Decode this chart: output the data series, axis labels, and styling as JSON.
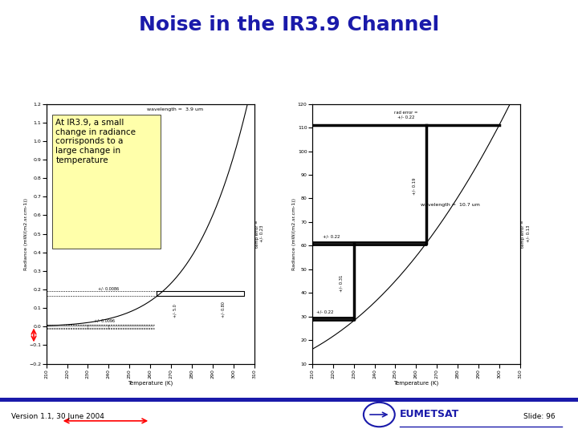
{
  "title": "Noise in the IR3.9 Channel",
  "title_color": "#1a1aaa",
  "title_fontsize": 18,
  "bg_color": "#ffffff",
  "left_plot": {
    "wavelength_label": "wavelength =  3.9 um",
    "ylabel": "Radiance (mW/(m2.sr.cm-1))",
    "xlabel": "Temperature (K)",
    "xlim": [
      210,
      310
    ],
    "ylim": [
      -0.2,
      1.2
    ],
    "xticks": [
      210,
      220,
      230,
      240,
      250,
      260,
      270,
      280,
      290,
      300,
      310
    ],
    "yticks": [
      -0.2,
      -0.1,
      0.0,
      0.1,
      0.2,
      0.3,
      0.4,
      0.5,
      0.6,
      0.7,
      0.8,
      0.9,
      1.0,
      1.1,
      1.2
    ],
    "annotation_box_text": "At IR3.9, a small\nchange in radiance\ncorrisponds to a\nlarge change in\ntemperature",
    "annotation_box_color": "#ffffaa",
    "noise_label1": "+/- 0.0086",
    "noise_label2": "+/- 0.0096",
    "right_axis_label": "temp error =\n+/- 0.23"
  },
  "right_plot": {
    "wavelength_label": "wavelength =  10.7 um",
    "ylabel": "Radiance (mW/(m2.sr.cm-1))",
    "xlabel": "Temperature (K)",
    "xlim": [
      210,
      310
    ],
    "ylim": [
      10,
      120
    ],
    "xticks": [
      210,
      220,
      230,
      240,
      250,
      260,
      270,
      280,
      290,
      300,
      310
    ],
    "yticks": [
      10,
      20,
      30,
      40,
      50,
      60,
      70,
      80,
      90,
      100,
      110,
      120
    ],
    "rad_top_label": "rad error =\n+/- 0.22",
    "right_axis_label": "temp error =\n+/- 0.13"
  },
  "footer_text": "Version 1.1, 30 June 2004",
  "slide_number": "Slide: 96",
  "footer_bar_color": "#1a1aaa",
  "eumetsat_color": "#1a1aaa"
}
